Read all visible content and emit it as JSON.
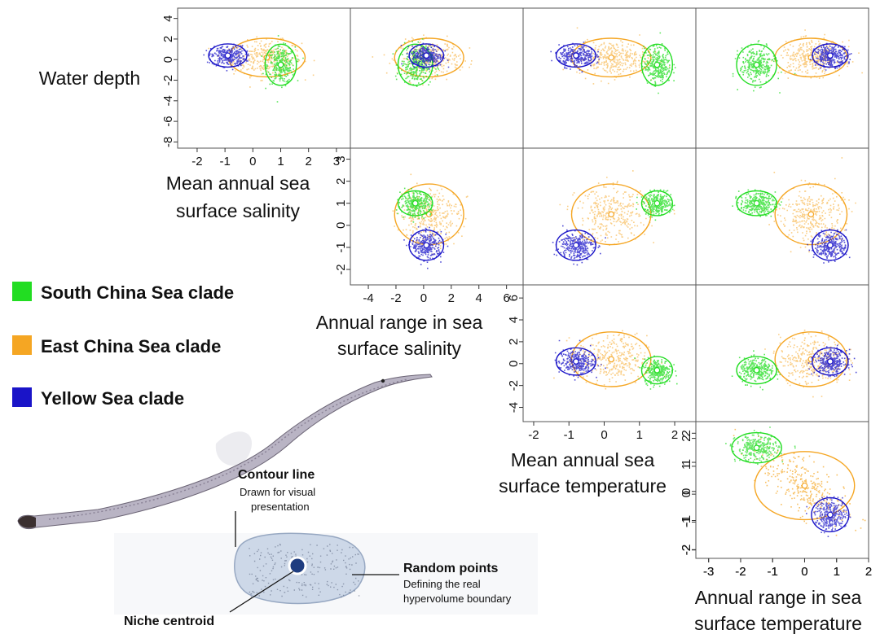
{
  "chart_data": {
    "type": "scatter",
    "title": "",
    "variables": [
      {
        "id": "depth",
        "label": [
          "Water depth"
        ],
        "ticks": [
          4,
          2,
          0,
          -2,
          -4,
          -6,
          -8
        ],
        "range": [
          -8.6,
          5
        ]
      },
      {
        "id": "salinity_mean",
        "label": [
          "Mean annual sea",
          "surface salinity"
        ],
        "ticks": [
          -2,
          -1,
          0,
          1,
          2,
          3
        ],
        "range": [
          -2.7,
          3.5
        ]
      },
      {
        "id": "salinity_range",
        "label": [
          "Annual range in sea",
          "surface salinity"
        ],
        "ticks": [
          -4,
          -2,
          0,
          2,
          4,
          6
        ],
        "range": [
          -5.3,
          7.2
        ]
      },
      {
        "id": "temp_mean",
        "label": [
          "Mean annual sea",
          "surface temperature"
        ],
        "ticks": [
          -2,
          -1,
          0,
          1,
          2
        ],
        "range": [
          -2.3,
          2.6
        ]
      },
      {
        "id": "temp_range",
        "label": [
          "Annual range in sea",
          "surface temperature"
        ],
        "ticks": [
          -3,
          -2,
          -1,
          0,
          1,
          2
        ],
        "range": [
          -3.4,
          2.0
        ]
      }
    ],
    "series": [
      {
        "name": "South China Sea clade",
        "color": "#22dd22",
        "centroid": {
          "depth": -0.5,
          "salinity_mean": 1.0,
          "salinity_range": -0.6,
          "temp_mean": 1.5,
          "temp_range": -1.5
        }
      },
      {
        "name": "East China Sea clade",
        "color": "#f5a623",
        "centroid": {
          "depth": 0.2,
          "salinity_mean": 0.5,
          "salinity_range": 0.4,
          "temp_mean": 0.2,
          "temp_range": 0.2
        }
      },
      {
        "name": "Yellow Sea clade",
        "color": "#1a14c8",
        "centroid": {
          "depth": 0.4,
          "salinity_mean": -0.9,
          "salinity_range": 0.2,
          "temp_mean": -0.8,
          "temp_range": 0.8
        }
      }
    ],
    "legend_position": "left-middle"
  },
  "legend": [
    {
      "label": "South China Sea clade",
      "color": "#22dd22"
    },
    {
      "label": "East China Sea clade",
      "color": "#f5a623"
    },
    {
      "label": "Yellow Sea clade",
      "color": "#1a14c8"
    }
  ],
  "annotation": {
    "contour_title": "Contour line",
    "contour_desc": [
      "Drawn for visual",
      "presentation"
    ],
    "random_title": "Random points",
    "random_desc": [
      "Defining the real",
      "hypervolume boundary"
    ],
    "centroid_title": "Niche centroid"
  },
  "fish_image": "pipefish-specimen"
}
